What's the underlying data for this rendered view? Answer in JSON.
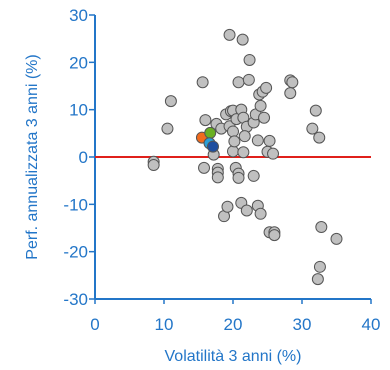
{
  "chart_data": {
    "type": "scatter",
    "title": "",
    "xlabel": "Volatilità 3 anni (%)",
    "ylabel": "Perf. annualizzata 3 anni (%)",
    "xlim": [
      0,
      40
    ],
    "ylim": [
      -30,
      30
    ],
    "x_ticks": [
      "0",
      "10",
      "20",
      "30",
      "40"
    ],
    "y_ticks": [
      "30",
      "20",
      "10",
      "0",
      "-10",
      "-20",
      "-30"
    ],
    "grid": false,
    "zero_line_color": "#e0201b",
    "axis_color": "#2376c8",
    "series": [
      {
        "color": "#c0c0c0",
        "points": [
          [
            8.5,
            -1
          ],
          [
            8.5,
            -1.7
          ],
          [
            10.5,
            6
          ],
          [
            11,
            11.8
          ],
          [
            15.6,
            15.8
          ],
          [
            16,
            7.8
          ],
          [
            15.8,
            -2.3
          ],
          [
            17.8,
            -2.5
          ],
          [
            17.8,
            -3.3
          ],
          [
            17.8,
            -4.3
          ],
          [
            17.6,
            7
          ],
          [
            18.3,
            6
          ],
          [
            18.7,
            -12.5
          ],
          [
            19.2,
            -10.5
          ],
          [
            19,
            9
          ],
          [
            19.5,
            25.8
          ],
          [
            19.7,
            9.7
          ],
          [
            19.5,
            6.5
          ],
          [
            20,
            9.8
          ],
          [
            20.5,
            8
          ],
          [
            20,
            5.4
          ],
          [
            20,
            1.2
          ],
          [
            20.2,
            3.3
          ],
          [
            20.4,
            -2.3
          ],
          [
            20.8,
            -3.5
          ],
          [
            20.8,
            -4.4
          ],
          [
            20.8,
            15.8
          ],
          [
            21.4,
            24.8
          ],
          [
            21.2,
            10
          ],
          [
            21.5,
            8.3
          ],
          [
            22,
            6.4
          ],
          [
            21.7,
            4.4
          ],
          [
            21.5,
            1
          ],
          [
            21.2,
            -9.7
          ],
          [
            22,
            -11.3
          ],
          [
            22.3,
            16.3
          ],
          [
            22.4,
            20.5
          ],
          [
            23,
            7.3
          ],
          [
            23.3,
            9
          ],
          [
            23,
            -4
          ],
          [
            24,
            10.8
          ],
          [
            23.8,
            13.2
          ],
          [
            24.3,
            13.8
          ],
          [
            24.8,
            14.6
          ],
          [
            24.5,
            8.3
          ],
          [
            23.6,
            3.5
          ],
          [
            23.6,
            -10.3
          ],
          [
            24,
            -12
          ],
          [
            25,
            1.1
          ],
          [
            25.3,
            3.4
          ],
          [
            25.8,
            0.7
          ],
          [
            25.3,
            -15.9
          ],
          [
            26,
            -15.9
          ],
          [
            26,
            -16.5
          ],
          [
            28.3,
            16.2
          ],
          [
            28.6,
            15.8
          ],
          [
            28.3,
            13.5
          ],
          [
            31.5,
            6
          ],
          [
            32,
            9.8
          ],
          [
            32.5,
            4.1
          ],
          [
            32.8,
            -14.8
          ],
          [
            32.6,
            -23.2
          ],
          [
            32.3,
            -25.8
          ],
          [
            35,
            -17.3
          ],
          [
            17.2,
            0.5
          ]
        ]
      },
      {
        "color": "#f26b1d",
        "points": [
          [
            15.5,
            4.1
          ]
        ]
      },
      {
        "color": "#6ab023",
        "points": [
          [
            16.7,
            5.1
          ]
        ]
      },
      {
        "color": "#2a9fd8",
        "points": [
          [
            16.6,
            2.9
          ]
        ]
      },
      {
        "color": "#1f4fa0",
        "points": [
          [
            17.1,
            2.2
          ]
        ]
      }
    ]
  }
}
